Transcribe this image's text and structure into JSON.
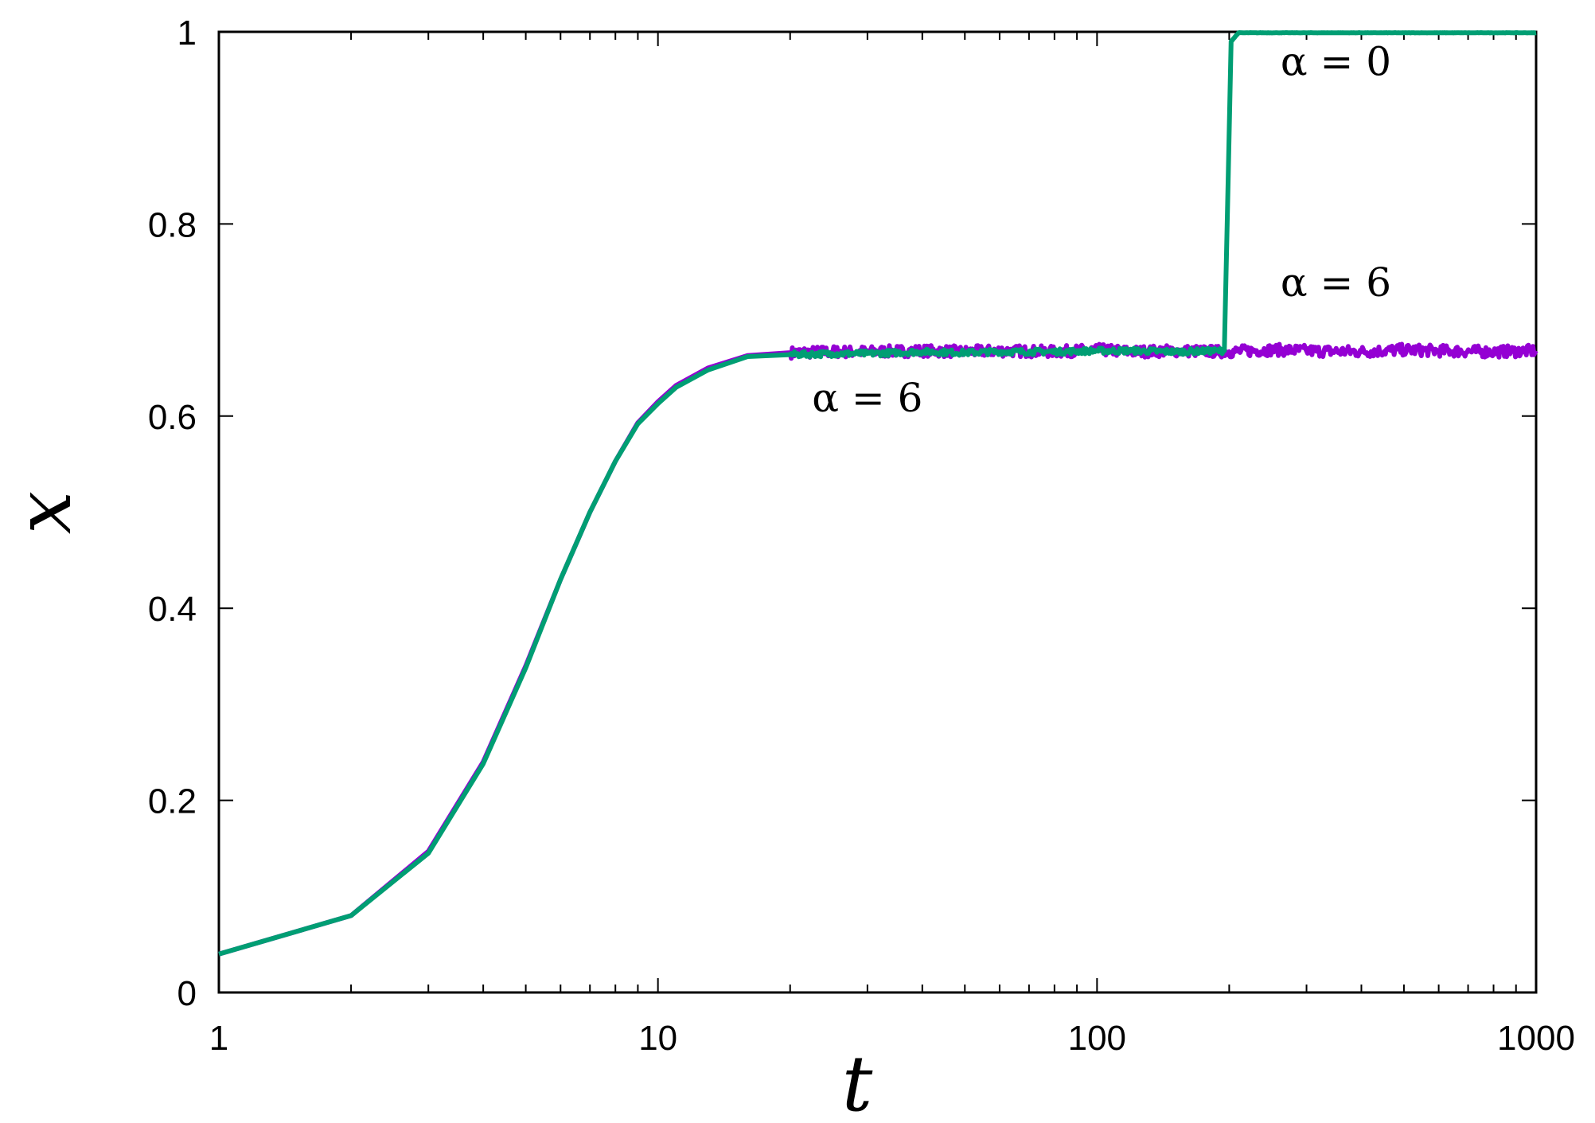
{
  "chart_data": {
    "type": "line",
    "title": "",
    "xlabel": "t",
    "ylabel": "x",
    "xscale": "log",
    "xlim": [
      1,
      1000
    ],
    "ylim": [
      0,
      1
    ],
    "grid": false,
    "xticks": [
      {
        "value": 1,
        "label": "1"
      },
      {
        "value": 10,
        "label": "10"
      },
      {
        "value": 100,
        "label": "100"
      },
      {
        "value": 1000,
        "label": "1000"
      }
    ],
    "yticks": [
      {
        "value": 0,
        "label": "0"
      },
      {
        "value": 0.2,
        "label": "0.2"
      },
      {
        "value": 0.4,
        "label": "0.4"
      },
      {
        "value": 0.6,
        "label": "0.6"
      },
      {
        "value": 0.8,
        "label": "0.8"
      },
      {
        "value": 1,
        "label": "1"
      }
    ],
    "series": [
      {
        "color": "#9400d3",
        "x": [
          1,
          2,
          3,
          4,
          5,
          6,
          7,
          8,
          9,
          10,
          11,
          13,
          16,
          20,
          25,
          30,
          40,
          50,
          60,
          80,
          100,
          120,
          150,
          200,
          250,
          300,
          400,
          500,
          600,
          800,
          1000
        ],
        "y": [
          0.04,
          0.08,
          0.147,
          0.24,
          0.34,
          0.43,
          0.5,
          0.553,
          0.593,
          0.615,
          0.632,
          0.65,
          0.663,
          0.666,
          0.667,
          0.667,
          0.668,
          0.667,
          0.668,
          0.667,
          0.669,
          0.667,
          0.668,
          0.667,
          0.669,
          0.668,
          0.667,
          0.669,
          0.668,
          0.667,
          0.668
        ],
        "noise": 0.006
      },
      {
        "color": "#009e73",
        "x": [
          1,
          2,
          3,
          4,
          5,
          6,
          7,
          8,
          9,
          10,
          11,
          13,
          16,
          20,
          25,
          30,
          40,
          50,
          60,
          80,
          100,
          120,
          150,
          195,
          199,
          202,
          210,
          300,
          500,
          1000
        ],
        "y": [
          0.04,
          0.08,
          0.145,
          0.238,
          0.338,
          0.43,
          0.5,
          0.553,
          0.592,
          0.613,
          0.63,
          0.648,
          0.662,
          0.664,
          0.665,
          0.665,
          0.667,
          0.666,
          0.667,
          0.667,
          0.668,
          0.668,
          0.667,
          0.668,
          0.85,
          0.99,
          0.999,
          0.999,
          0.999,
          0.999
        ],
        "noise": 0.003
      }
    ],
    "annotations": [
      {
        "text": "α = 0",
        "x": 350,
        "y": 0.955
      },
      {
        "text": "α = 6",
        "x": 350,
        "y": 0.725
      },
      {
        "text": "α = 6",
        "x": 30,
        "y": 0.605
      }
    ]
  }
}
